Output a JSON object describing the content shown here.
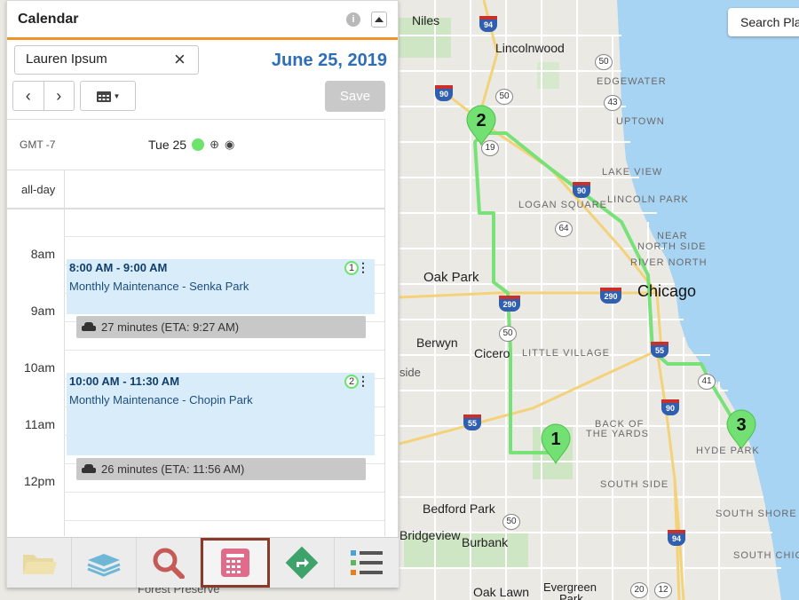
{
  "panel": {
    "title": "Calendar",
    "info_icon": "i",
    "user": "Lauren Ipsum",
    "date": "June 25, 2019",
    "save_label": "Save"
  },
  "grid": {
    "timezone": "GMT -7",
    "day": "Tue 25",
    "allday_label": "all-day",
    "hours": [
      "8am",
      "9am",
      "10am",
      "11am",
      "12pm"
    ]
  },
  "events": [
    {
      "time": "8:00 AM - 9:00 AM",
      "title": "Monthly Maintenance - Senka Park",
      "number": "1"
    },
    {
      "time": "10:00 AM - 11:30 AM",
      "title": "Monthly Maintenance - Chopin Park",
      "number": "2"
    }
  ],
  "travel": [
    {
      "text": "27 minutes (ETA: 9:27 AM)"
    },
    {
      "text": "26 minutes (ETA: 11:56 AM)"
    }
  ],
  "toolbar": {
    "items": [
      "folder-icon",
      "layers-icon",
      "search-icon",
      "calendar-icon",
      "directions-icon",
      "list-icon"
    ],
    "active": "calendar-icon"
  },
  "map": {
    "search_placeholder": "Search Pla",
    "labels": {
      "niles": "Niles",
      "lincolnwood": "Lincolnwood",
      "edgewater": "EDGEWATER",
      "uptown": "UPTOWN",
      "lakeview": "LAKE VIEW",
      "logansquare": "LOGAN SQUARE",
      "lincolnpark": "LINCOLN PARK",
      "nearnorth": "NEAR",
      "nearnorth2": "NORTH SIDE",
      "rivernorth": "RIVER NORTH",
      "oakpark": "Oak Park",
      "chicago": "Chicago",
      "berwyn": "Berwyn",
      "cicero": "Cicero",
      "littlevillage": "LITTLE VILLAGE",
      "side": "side",
      "backofyards": "BACK OF",
      "backofyards2": "THE YARDS",
      "hydepark": "HYDE PARK",
      "southside": "SOUTH SIDE",
      "bedfordpark": "Bedford Park",
      "bridgeview": "Bridgeview",
      "burbank": "Burbank",
      "southshore": "SOUTH SHORE",
      "southchi": "SOUTH CHIC",
      "oaklawn": "Oak Lawn",
      "evergreen": "Evergreen",
      "evergreen2": "Park",
      "forestpreserve": "Forest Preserve"
    },
    "shields": [
      "94",
      "50",
      "90",
      "50",
      "43",
      "19",
      "90",
      "64",
      "290",
      "290",
      "50",
      "55",
      "41",
      "90",
      "55",
      "50",
      "94",
      "20",
      "12"
    ],
    "pins": [
      "1",
      "2",
      "3"
    ],
    "route_color": "#72e072",
    "water_color": "#a8d4f4"
  }
}
